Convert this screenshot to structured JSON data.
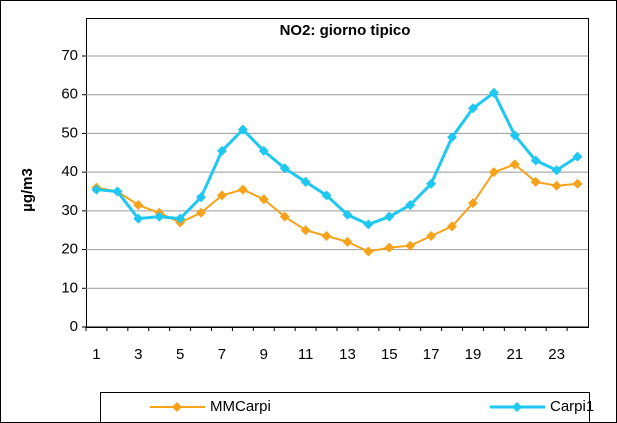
{
  "chart_data": {
    "type": "line",
    "title": "NO2: giorno tipico",
    "y_label": "µg/m3",
    "categories": [
      1,
      null,
      3,
      null,
      5,
      null,
      7,
      null,
      9,
      null,
      11,
      null,
      13,
      null,
      15,
      null,
      17,
      null,
      19,
      null,
      21,
      null,
      23,
      null
    ],
    "series": [
      {
        "name": "MMCarpi",
        "color": "#f7a21b",
        "values": [
          36,
          35,
          31.5,
          29.5,
          27,
          29.5,
          34,
          35.5,
          33,
          28.5,
          25,
          23.5,
          22,
          19.5,
          20.5,
          21,
          23.5,
          26,
          32,
          40,
          42,
          37.5,
          36.5,
          37
        ]
      },
      {
        "name": "Carpi1",
        "color": "#1ec8f0",
        "values": [
          35.5,
          35,
          28,
          28.5,
          28,
          33.5,
          45.5,
          51,
          45.5,
          41,
          37.5,
          34,
          29,
          26.5,
          28.5,
          31.5,
          37,
          49,
          56.5,
          60.5,
          49.5,
          43,
          40.5,
          44
        ]
      }
    ],
    "ylim": [
      0,
      70
    ],
    "yticks": [
      0,
      10,
      20,
      30,
      40,
      50,
      60,
      70
    ],
    "grid": true,
    "legend": "bottom"
  }
}
